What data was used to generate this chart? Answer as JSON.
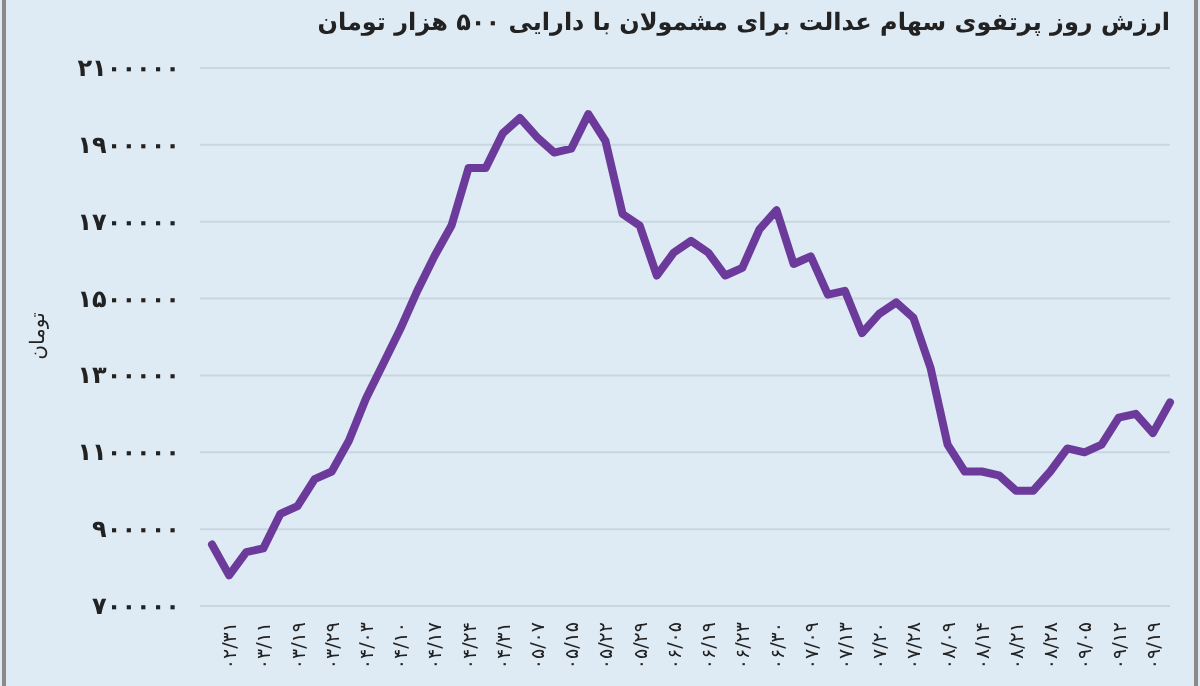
{
  "chart_data": {
    "type": "line",
    "title": "ارزش روز پرتفوی سهام عدالت برای مشمولان با دارایی ۵۰۰ هزار تومان",
    "ylabel": "تومان",
    "categories": [
      null,
      "۰۲/۳۱",
      null,
      "۰۳/۱۱",
      null,
      "۰۳/۱۹",
      null,
      "۰۳/۲۹",
      null,
      "۰۴/۰۳",
      null,
      "۰۴/۱۰",
      null,
      "۰۴/۱۷",
      null,
      "۰۴/۲۴",
      null,
      "۰۴/۳۱",
      null,
      "۰۵/۰۷",
      null,
      "۰۵/۱۵",
      null,
      "۰۵/۲۲",
      null,
      "۰۵/۲۹",
      null,
      "۰۶/۰۵",
      null,
      "۰۶/۱۹",
      null,
      "۰۶/۲۳",
      null,
      "۰۶/۳۰",
      null,
      "۰۷/۰۹",
      null,
      "۰۷/۱۳",
      null,
      "۰۷/۲۰",
      null,
      "۰۷/۲۸",
      null,
      "۰۸/۰۹",
      null,
      "۰۸/۱۴",
      null,
      "۰۸/۲۱",
      null,
      "۰۸/۲۸",
      null,
      "۰۹/۰۵",
      null,
      "۰۹/۱۲",
      null,
      "۰۹/۱۹",
      null
    ],
    "series": [
      {
        "color": "#6b3a9a",
        "values": [
          860000,
          780000,
          840000,
          850000,
          940000,
          960000,
          1030000,
          1050000,
          1130000,
          1240000,
          1330000,
          1420000,
          1520000,
          1610000,
          1690000,
          1840000,
          1840000,
          1930000,
          1970000,
          1920000,
          1880000,
          1890000,
          1980000,
          1910000,
          1720000,
          1690000,
          1560000,
          1620000,
          1650000,
          1620000,
          1560000,
          1580000,
          1680000,
          1730000,
          1590000,
          1610000,
          1510000,
          1520000,
          1410000,
          1460000,
          1490000,
          1450000,
          1320000,
          1120000,
          1050000,
          1050000,
          1040000,
          1000000,
          1000000,
          1050000,
          1110000,
          1100000,
          1120000,
          1190000,
          1200000,
          1150000,
          1230000
        ]
      }
    ],
    "ylim": [
      700000,
      2100000
    ],
    "yticks": [
      {
        "value": 700000,
        "label": "۷۰۰۰۰۰"
      },
      {
        "value": 900000,
        "label": "۹۰۰۰۰۰"
      },
      {
        "value": 1100000,
        "label": "۱۱۰۰۰۰۰"
      },
      {
        "value": 1300000,
        "label": "۱۳۰۰۰۰۰"
      },
      {
        "value": 1500000,
        "label": "۱۵۰۰۰۰۰"
      },
      {
        "value": 1700000,
        "label": "۱۷۰۰۰۰۰"
      },
      {
        "value": 1900000,
        "label": "۱۹۰۰۰۰۰"
      },
      {
        "value": 2100000,
        "label": "۲۱۰۰۰۰۰"
      }
    ],
    "grid": "y",
    "line_style": "solid",
    "marker": "none"
  }
}
